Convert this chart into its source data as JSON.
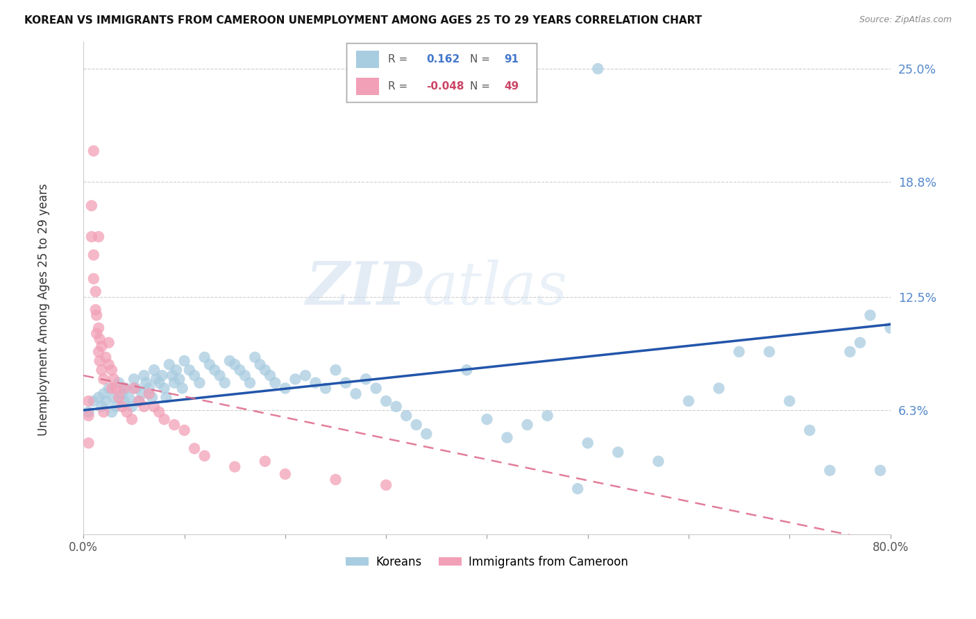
{
  "title": "KOREAN VS IMMIGRANTS FROM CAMEROON UNEMPLOYMENT AMONG AGES 25 TO 29 YEARS CORRELATION CHART",
  "source": "Source: ZipAtlas.com",
  "ylabel": "Unemployment Among Ages 25 to 29 years",
  "xlim": [
    0.0,
    0.8
  ],
  "ylim": [
    -0.005,
    0.265
  ],
  "yticks": [
    0.0,
    0.063,
    0.125,
    0.188,
    0.25
  ],
  "ytick_labels": [
    "",
    "6.3%",
    "12.5%",
    "18.8%",
    "25.0%"
  ],
  "xticks": [
    0.0,
    0.1,
    0.2,
    0.3,
    0.4,
    0.5,
    0.6,
    0.7,
    0.8
  ],
  "xtick_labels": [
    "0.0%",
    "",
    "",
    "",
    "",
    "",
    "",
    "",
    "80.0%"
  ],
  "korean_color": "#a8cce0",
  "cameroon_color": "#f2a0b8",
  "korean_R": 0.162,
  "korean_N": 91,
  "cameroon_R": -0.048,
  "cameroon_N": 49,
  "watermark_zip": "ZIP",
  "watermark_atlas": "atlas",
  "grid_color": "#c8c8c8",
  "trend_blue": "#2255aa",
  "trend_pink": "#dd6688",
  "blue_line_x0": 0.0,
  "blue_line_y0": 0.063,
  "blue_line_x1": 0.8,
  "blue_line_y1": 0.11,
  "pink_line_x0": 0.0,
  "pink_line_y0": 0.082,
  "pink_line_x1": 0.8,
  "pink_line_y1": -0.01,
  "korean_x": [
    0.005,
    0.01,
    0.015,
    0.018,
    0.02,
    0.022,
    0.025,
    0.028,
    0.03,
    0.032,
    0.035,
    0.038,
    0.04,
    0.042,
    0.045,
    0.048,
    0.05,
    0.052,
    0.055,
    0.058,
    0.06,
    0.062,
    0.065,
    0.068,
    0.07,
    0.072,
    0.075,
    0.078,
    0.08,
    0.082,
    0.085,
    0.088,
    0.09,
    0.092,
    0.095,
    0.098,
    0.1,
    0.105,
    0.11,
    0.115,
    0.12,
    0.125,
    0.13,
    0.135,
    0.14,
    0.145,
    0.15,
    0.155,
    0.16,
    0.165,
    0.17,
    0.175,
    0.18,
    0.185,
    0.19,
    0.2,
    0.21,
    0.22,
    0.23,
    0.24,
    0.25,
    0.26,
    0.27,
    0.28,
    0.29,
    0.3,
    0.31,
    0.32,
    0.33,
    0.34,
    0.38,
    0.4,
    0.42,
    0.44,
    0.46,
    0.5,
    0.53,
    0.57,
    0.6,
    0.63,
    0.65,
    0.68,
    0.7,
    0.72,
    0.74,
    0.76,
    0.77,
    0.78,
    0.79,
    0.8,
    0.49
  ],
  "korean_y": [
    0.062,
    0.068,
    0.07,
    0.065,
    0.072,
    0.068,
    0.075,
    0.062,
    0.07,
    0.065,
    0.078,
    0.072,
    0.068,
    0.075,
    0.07,
    0.065,
    0.08,
    0.075,
    0.068,
    0.072,
    0.082,
    0.078,
    0.075,
    0.07,
    0.085,
    0.08,
    0.078,
    0.082,
    0.075,
    0.07,
    0.088,
    0.082,
    0.078,
    0.085,
    0.08,
    0.075,
    0.09,
    0.085,
    0.082,
    0.078,
    0.092,
    0.088,
    0.085,
    0.082,
    0.078,
    0.09,
    0.088,
    0.085,
    0.082,
    0.078,
    0.092,
    0.088,
    0.085,
    0.082,
    0.078,
    0.075,
    0.08,
    0.082,
    0.078,
    0.075,
    0.085,
    0.078,
    0.072,
    0.08,
    0.075,
    0.068,
    0.065,
    0.06,
    0.055,
    0.05,
    0.085,
    0.058,
    0.048,
    0.055,
    0.06,
    0.045,
    0.04,
    0.035,
    0.068,
    0.075,
    0.095,
    0.095,
    0.068,
    0.052,
    0.03,
    0.095,
    0.1,
    0.115,
    0.03,
    0.108,
    0.02
  ],
  "korean_y_extra": [
    0.25
  ],
  "korean_x_extra": [
    0.51
  ],
  "cameroon_x": [
    0.005,
    0.005,
    0.005,
    0.008,
    0.008,
    0.01,
    0.01,
    0.012,
    0.012,
    0.013,
    0.013,
    0.015,
    0.015,
    0.016,
    0.016,
    0.018,
    0.018,
    0.02,
    0.022,
    0.025,
    0.025,
    0.028,
    0.028,
    0.03,
    0.032,
    0.035,
    0.038,
    0.04,
    0.043,
    0.048,
    0.05,
    0.055,
    0.06,
    0.065,
    0.07,
    0.075,
    0.08,
    0.09,
    0.1,
    0.11,
    0.12,
    0.15,
    0.18,
    0.2,
    0.25,
    0.3,
    0.01,
    0.015,
    0.02
  ],
  "cameroon_y": [
    0.068,
    0.06,
    0.045,
    0.175,
    0.158,
    0.148,
    0.135,
    0.128,
    0.118,
    0.115,
    0.105,
    0.108,
    0.095,
    0.102,
    0.09,
    0.098,
    0.085,
    0.08,
    0.092,
    0.1,
    0.088,
    0.085,
    0.075,
    0.08,
    0.075,
    0.07,
    0.065,
    0.075,
    0.062,
    0.058,
    0.075,
    0.068,
    0.065,
    0.072,
    0.065,
    0.062,
    0.058,
    0.055,
    0.052,
    0.042,
    0.038,
    0.032,
    0.035,
    0.028,
    0.025,
    0.022,
    0.205,
    0.158,
    0.062
  ]
}
